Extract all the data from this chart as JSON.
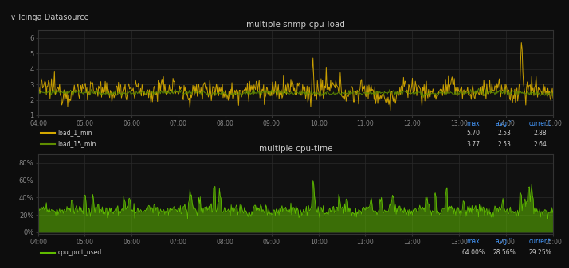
{
  "bg_color": "#0d0d0d",
  "panel_bg": "#1a1a1a",
  "header_bg": "#111111",
  "plot_bg_color": "#111111",
  "header_text": "∨ Icinga Datasource",
  "chart1_title": "multiple snmp-cpu-load",
  "chart2_title": "multiple cpu-time",
  "x_ticks": [
    "04:00",
    "05:00",
    "06:00",
    "07:00",
    "08:00",
    "09:00",
    "10:00",
    "11:00",
    "12:00",
    "13:00",
    "14:00",
    "15:00"
  ],
  "chart1_ylim": [
    1.0,
    6.5
  ],
  "chart1_yticks": [
    1,
    2,
    3,
    4,
    5,
    6
  ],
  "chart2_ylim": [
    -2,
    90
  ],
  "chart2_yticks": [
    0,
    20,
    40,
    60,
    80
  ],
  "legend1_entries": [
    {
      "label": "load_1_min",
      "color": "#d4a800",
      "max": "5.70",
      "avg": "2.53",
      "current": "2.88"
    },
    {
      "label": "load_15_min",
      "color": "#5f8d00",
      "max": "3.77",
      "avg": "2.53",
      "current": "2.64"
    }
  ],
  "legend2_entries": [
    {
      "label": "cpu_prct_used",
      "color": "#5fbb00",
      "max": "64.00%",
      "avg": "28.56%",
      "current": "29.25%"
    }
  ],
  "col_header_color": "#4499ff",
  "text_color": "#cccccc",
  "grid_color": "#2a2a2a",
  "tick_color": "#888888",
  "spine_color": "#333333"
}
